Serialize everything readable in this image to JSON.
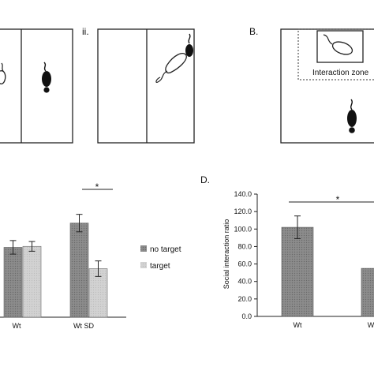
{
  "panel_labels": {
    "ii": "ii.",
    "b": "B.",
    "d": "D."
  },
  "interaction_zone_label": "Interaction zone",
  "icons": {
    "mouse": "mouse-icon"
  },
  "colors": {
    "dark_bar": "#8c8c8c",
    "light_bar": "#d0d0d0",
    "outline": "#222222"
  },
  "chart_data": [
    {
      "type": "bar",
      "categories": [
        "Wt",
        "Wt SD"
      ],
      "series": [
        {
          "name": "no target",
          "values": [
            72,
            97
          ],
          "errors": [
            7,
            9
          ]
        },
        {
          "name": "target",
          "values": [
            73,
            50
          ],
          "errors": [
            5,
            8
          ]
        }
      ],
      "ylim": [
        0,
        135
      ],
      "legend_position": "right",
      "significance": {
        "between": [
          "no target",
          "target"
        ],
        "category": "Wt SD",
        "marker": "*"
      }
    },
    {
      "type": "bar",
      "categories": [
        "Wt",
        "Wt SD"
      ],
      "category_labels_visible": [
        "Wt",
        "W"
      ],
      "series": [
        {
          "values": [
            102,
            55
          ],
          "errors": [
            13,
            0
          ]
        }
      ],
      "ylabel": "Social interaction ratio",
      "ylim": [
        0,
        140
      ],
      "yticks": [
        "0.0",
        "20.0",
        "40.0",
        "60.0",
        "80.0",
        "100.0",
        "120.0",
        "140.0"
      ],
      "significance": {
        "between": [
          "Wt",
          "Wt SD"
        ],
        "marker": "*"
      }
    }
  ]
}
